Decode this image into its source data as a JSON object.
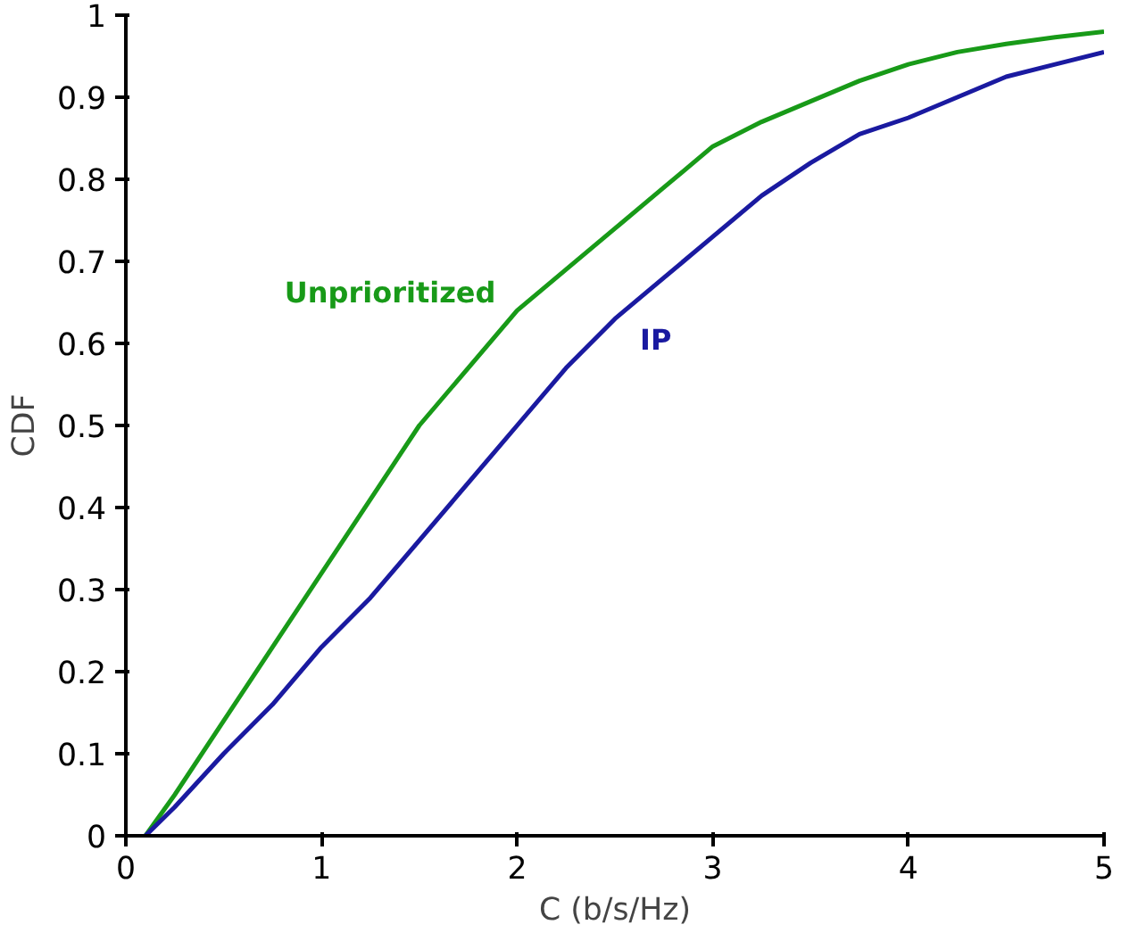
{
  "chart_data": {
    "type": "line",
    "xlabel": "C (b/s/Hz)",
    "ylabel": "CDF",
    "xlim": [
      0,
      5
    ],
    "ylim": [
      0,
      1
    ],
    "xticks": [
      0,
      1,
      2,
      3,
      4,
      5
    ],
    "yticks": [
      0,
      0.1,
      0.2,
      0.3,
      0.4,
      0.5,
      0.6,
      0.7,
      0.8,
      0.9,
      1
    ],
    "grid": false,
    "series": [
      {
        "name": "Unprioritized",
        "color": "#189a18",
        "x": [
          0.1,
          0.25,
          0.5,
          0.75,
          1,
          1.25,
          1.5,
          1.75,
          2,
          2.25,
          2.5,
          2.75,
          3,
          3.25,
          3.5,
          3.75,
          4,
          4.25,
          4.5,
          4.75,
          5
        ],
        "values": [
          0,
          0.05,
          0.14,
          0.23,
          0.32,
          0.41,
          0.5,
          0.57,
          0.64,
          0.69,
          0.74,
          0.79,
          0.84,
          0.87,
          0.895,
          0.92,
          0.94,
          0.955,
          0.965,
          0.973,
          0.98
        ]
      },
      {
        "name": "IP",
        "color": "#1a1aa0",
        "x": [
          0.1,
          0.25,
          0.5,
          0.75,
          1,
          1.25,
          1.5,
          1.75,
          2,
          2.25,
          2.5,
          2.75,
          3,
          3.25,
          3.5,
          3.75,
          4,
          4.25,
          4.5,
          4.75,
          5
        ],
        "values": [
          0,
          0.035,
          0.1,
          0.16,
          0.23,
          0.29,
          0.36,
          0.43,
          0.5,
          0.57,
          0.63,
          0.68,
          0.73,
          0.78,
          0.82,
          0.855,
          0.875,
          0.9,
          0.925,
          0.94,
          0.955
        ]
      }
    ]
  }
}
